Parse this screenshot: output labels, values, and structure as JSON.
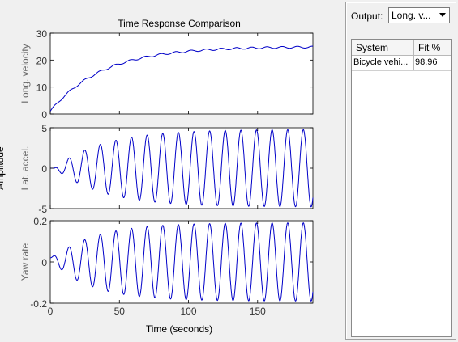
{
  "figure": {
    "title": "Time Response Comparison",
    "y_axis_group_label": "Amplitude",
    "x_label": "Time (seconds)"
  },
  "output_selector": {
    "label": "Output:",
    "selected": "Long. v..."
  },
  "fit_table": {
    "columns": [
      "System",
      "Fit %"
    ],
    "rows": [
      {
        "system": "Bicycle vehi...",
        "fit": "98.96"
      }
    ]
  },
  "colors": {
    "trace": "#0000c8",
    "axes_background": "#ffffff",
    "figure_background": "#f0f0f0"
  },
  "chart_data": [
    {
      "type": "line",
      "ylabel": "Long. velocity",
      "xlim": [
        0,
        190
      ],
      "ylim": [
        0,
        30
      ],
      "xticks": [
        0,
        50,
        100,
        150
      ],
      "yticks": [
        0,
        10,
        20,
        30
      ],
      "series": [
        {
          "kind": "first_order_rise",
          "start": 1,
          "final": 25,
          "time_constant": 38,
          "ripple": 0.35,
          "period": 11,
          "x_end": 190
        }
      ]
    },
    {
      "type": "line",
      "ylabel": "Lat. accel.",
      "xlim": [
        0,
        190
      ],
      "ylim": [
        -5,
        5
      ],
      "xticks": [
        0,
        50,
        100,
        150
      ],
      "yticks": [
        -5,
        0,
        5
      ],
      "series": [
        {
          "kind": "growing_oscillation",
          "start_offset": 0,
          "amplitude": 4.8,
          "period": 11.3,
          "growth_time": 35,
          "onset": 3,
          "x_end": 190
        }
      ]
    },
    {
      "type": "line",
      "ylabel": "Yaw rate",
      "xlim": [
        0,
        190
      ],
      "ylim": [
        -0.2,
        0.2
      ],
      "xticks": [
        0,
        50,
        100,
        150
      ],
      "xtick_labels": [
        "0",
        "50",
        "100",
        "150"
      ],
      "yticks": [
        -0.2,
        0,
        0.2
      ],
      "series": [
        {
          "kind": "growing_oscillation",
          "start_offset": 0.02,
          "amplitude": 0.19,
          "period": 11.3,
          "growth_time": 30,
          "onset": 0,
          "x_end": 190
        }
      ]
    }
  ]
}
